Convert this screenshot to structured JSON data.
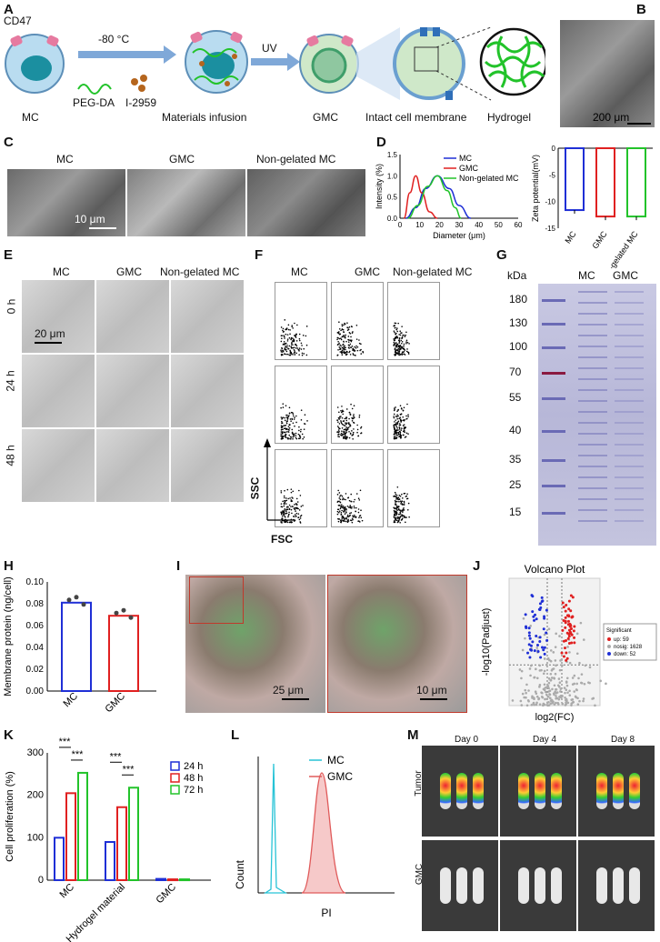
{
  "panels": {
    "A": {
      "label": "A",
      "cd47": "CD47",
      "temp": "-80 °C",
      "uv": "UV",
      "pegda": "PEG-DA",
      "i2959": "I-2959",
      "mc": "MC",
      "materials_infusion": "Materials infusion",
      "gmc": "GMC",
      "intact_membrane": "Intact cell membrane",
      "hydrogel": "Hydrogel"
    },
    "B": {
      "label": "B",
      "scale": "200 μm"
    },
    "C": {
      "label": "C",
      "cols": [
        "MC",
        "GMC",
        "Non-gelated MC"
      ],
      "scale": "10 μm"
    },
    "D": {
      "label": "D",
      "ylabel1": "Intensity (%)",
      "xlabel1": "Diameter (μm)",
      "legend": [
        "MC",
        "GMC",
        "Non-gelated MC"
      ],
      "ylabel2": "Zeta potential(mV)",
      "bar_cats": [
        "MC",
        "GMC",
        "Non-gelated MC"
      ]
    },
    "E": {
      "label": "E",
      "cols": [
        "MC",
        "GMC",
        "Non-gelated MC"
      ],
      "rows": [
        "0 h",
        "24 h",
        "48 h"
      ],
      "scale": "20 μm"
    },
    "F": {
      "label": "F",
      "cols": [
        "MC",
        "GMC",
        "Non-gelated MC"
      ],
      "y": "SSC",
      "x": "FSC"
    },
    "G": {
      "label": "G",
      "kda": "kDa",
      "markers": [
        "180",
        "130",
        "100",
        "70",
        "55",
        "40",
        "35",
        "25",
        "15"
      ],
      "lanes": [
        "MC",
        "GMC"
      ]
    },
    "H": {
      "label": "H",
      "ylabel": "Membrane protein (ng/cell)"
    },
    "I": {
      "label": "I",
      "scale1": "25 μm",
      "scale2": "10 μm"
    },
    "J": {
      "label": "J",
      "title": "Volcano Plot",
      "ylabel": "-log10(Padjust)",
      "xlabel": "log2(FC)",
      "legend_title": "Significant",
      "legend": [
        "up: 59",
        "nosig: 1628",
        "down: 52"
      ]
    },
    "K": {
      "label": "K",
      "ylabel": "Cell proliferation (%)",
      "legend": [
        "24 h",
        "48 h",
        "72 h"
      ],
      "cats": [
        "MC",
        "Hydrogel material",
        "GMC"
      ],
      "sig": "***"
    },
    "L": {
      "label": "L",
      "legend": [
        "MC",
        "GMC"
      ],
      "ylabel": "Count",
      "xlabel": "PI"
    },
    "M": {
      "label": "M",
      "cols": [
        "Day 0",
        "Day 4",
        "Day 8"
      ],
      "rows": [
        "Tumor",
        "GMC"
      ]
    }
  },
  "colors": {
    "blue": "#1f2fd6",
    "red": "#e02020",
    "green": "#22c32a",
    "cyan": "#27c3d6",
    "pink": "#e05a5a"
  },
  "chart_data": [
    {
      "type": "line",
      "panel": "D-left",
      "xlabel": "Diameter (μm)",
      "ylabel": "Intensity (%)",
      "xlim": [
        0,
        60
      ],
      "ylim": [
        0,
        1.5
      ],
      "xticks": [
        0,
        10,
        20,
        30,
        40,
        50,
        60
      ],
      "yticks": [
        0.0,
        0.5,
        1.0,
        1.5
      ],
      "series": [
        {
          "name": "MC",
          "x": [
            3,
            8,
            13,
            19,
            25,
            30,
            36
          ],
          "y": [
            0,
            0.25,
            0.7,
            1.0,
            0.7,
            0.3,
            0
          ]
        },
        {
          "name": "GMC",
          "x": [
            2,
            5,
            8,
            11,
            15,
            19
          ],
          "y": [
            0,
            0.6,
            1.0,
            0.6,
            0.15,
            0
          ]
        },
        {
          "name": "Non-gelated MC",
          "x": [
            4,
            9,
            14,
            19,
            24,
            28,
            31
          ],
          "y": [
            0,
            0.3,
            0.75,
            1.0,
            0.65,
            0.25,
            0
          ]
        }
      ]
    },
    {
      "type": "bar",
      "panel": "D-right",
      "ylabel": "Zeta potential(mV)",
      "categories": [
        "MC",
        "GMC",
        "Non-gelated MC"
      ],
      "values": [
        -11.6,
        -12.8,
        -12.8
      ],
      "ylim": [
        -15,
        0
      ],
      "yticks": [
        0,
        -5,
        -10,
        -15
      ]
    },
    {
      "type": "bar",
      "panel": "H",
      "ylabel": "Membrane protein (ng/cell)",
      "categories": [
        "MC",
        "GMC"
      ],
      "values": [
        0.081,
        0.069
      ],
      "ylim": [
        0,
        0.1
      ],
      "yticks": [
        0.0,
        0.02,
        0.04,
        0.06,
        0.08,
        0.1
      ]
    },
    {
      "type": "scatter",
      "panel": "J",
      "title": "Volcano Plot",
      "xlabel": "log2(FC)",
      "ylabel": "-log10(Padjust)",
      "xlim": [
        -7,
        7
      ],
      "ylim": [
        0,
        4
      ],
      "series": [
        {
          "name": "up: 59"
        },
        {
          "name": "nosig: 1628"
        },
        {
          "name": "down: 52"
        }
      ]
    },
    {
      "type": "bar",
      "panel": "K",
      "ylabel": "Cell proliferation (%)",
      "categories": [
        "MC",
        "Hydrogel material",
        "GMC"
      ],
      "ylim": [
        0,
        300
      ],
      "yticks": [
        0,
        100,
        200,
        300
      ],
      "series": [
        {
          "name": "24 h",
          "values": [
            100,
            90,
            3
          ]
        },
        {
          "name": "48 h",
          "values": [
            205,
            172,
            2
          ]
        },
        {
          "name": "72 h",
          "values": [
            253,
            218,
            2
          ]
        }
      ]
    },
    {
      "type": "area",
      "panel": "L",
      "xlabel": "PI",
      "ylabel": "Count",
      "series": [
        {
          "name": "MC"
        },
        {
          "name": "GMC"
        }
      ]
    }
  ]
}
